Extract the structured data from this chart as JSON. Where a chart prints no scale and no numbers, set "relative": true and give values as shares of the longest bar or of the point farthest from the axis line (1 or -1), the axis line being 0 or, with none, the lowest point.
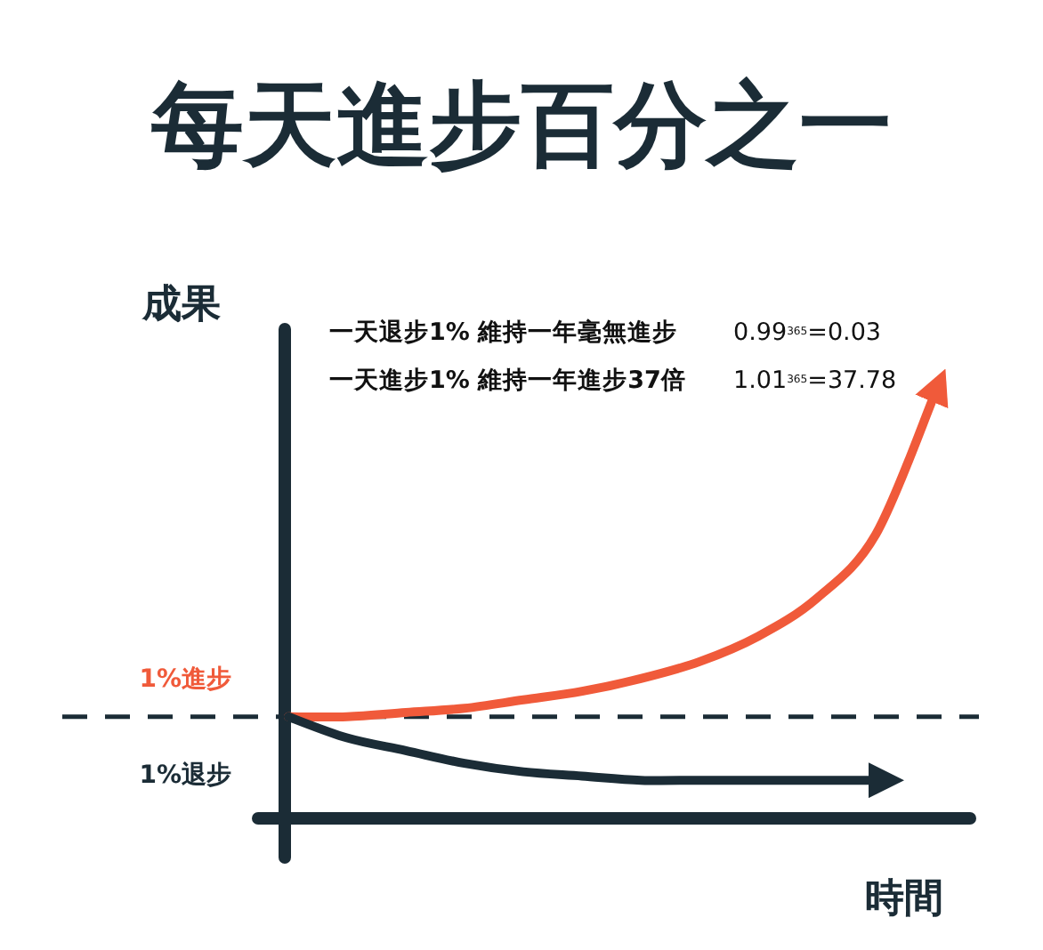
{
  "chart_data": {
    "type": "line",
    "relative": true,
    "title": "每天進步百分之一",
    "xlabel": "時間",
    "ylabel": "成果",
    "categories": [
      null,
      null,
      null,
      null,
      null,
      null,
      null,
      null,
      null,
      null,
      null,
      null
    ],
    "series": [
      {
        "name": "1%進步",
        "color": "#f05a3a",
        "values": [
          0.24,
          0.24,
          0.25,
          0.26,
          0.28,
          0.3,
          0.33,
          0.37,
          0.43,
          0.52,
          0.67,
          1
        ]
      },
      {
        "name": "1%退步",
        "color": "#1b2c36",
        "values": [
          0.24,
          0.19,
          0.16,
          0.13,
          0.11,
          0.1,
          0.09,
          0.09,
          0.09,
          0.09,
          0.09,
          null
        ]
      }
    ],
    "ref_lines": [
      {
        "axis": "y",
        "value": 0.24,
        "color": "#1b2c36",
        "line_style": "dashed"
      }
    ],
    "annotations": [
      "一天退步1% 維持一年毫無進步",
      "0.99$^{365}$=0.03",
      "一天進步1% 維持一年進步37倍",
      "1.01$^{365}$=37.78"
    ],
    "marker": "none",
    "line_style": "solid"
  }
}
